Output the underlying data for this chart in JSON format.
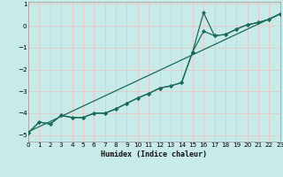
{
  "xlabel": "Humidex (Indice chaleur)",
  "bg_color": "#c8eae8",
  "grid_color": "#e8c8c8",
  "line_color": "#1a6b5a",
  "xlim": [
    0,
    23
  ],
  "ylim": [
    -5.3,
    1.1
  ],
  "xticks": [
    0,
    1,
    2,
    3,
    4,
    5,
    6,
    7,
    8,
    9,
    10,
    11,
    12,
    13,
    14,
    15,
    16,
    17,
    18,
    19,
    20,
    21,
    22,
    23
  ],
  "yticks": [
    -5,
    -4,
    -3,
    -2,
    -1,
    0,
    1
  ],
  "line1_x": [
    0,
    1,
    2,
    3,
    4,
    5,
    6,
    7,
    8,
    9,
    10,
    11,
    12,
    13,
    14,
    15,
    16,
    17,
    18,
    19,
    20,
    21,
    22,
    23
  ],
  "line1_y": [
    -4.9,
    -4.4,
    -4.5,
    -4.1,
    -4.2,
    -4.2,
    -4.0,
    -4.0,
    -3.8,
    -3.55,
    -3.3,
    -3.1,
    -2.85,
    -2.75,
    -2.6,
    -1.2,
    -0.25,
    -0.45,
    -0.4,
    -0.15,
    0.05,
    0.15,
    0.3,
    0.55
  ],
  "line2_x": [
    0,
    1,
    2,
    3,
    4,
    5,
    6,
    7,
    8,
    9,
    10,
    11,
    12,
    13,
    14,
    15,
    16,
    17,
    18,
    19,
    20,
    21,
    22,
    23
  ],
  "line2_y": [
    -4.9,
    -4.4,
    -4.5,
    -4.1,
    -4.2,
    -4.2,
    -4.0,
    -4.0,
    -3.8,
    -3.55,
    -3.3,
    -3.1,
    -2.85,
    -2.75,
    -2.6,
    -1.2,
    0.6,
    -0.45,
    -0.4,
    -0.15,
    0.05,
    0.15,
    0.3,
    0.55
  ],
  "trend_x": [
    0,
    23
  ],
  "trend_y": [
    -4.85,
    0.55
  ],
  "xlabel_fontsize": 6.0,
  "tick_fontsize": 5.2
}
